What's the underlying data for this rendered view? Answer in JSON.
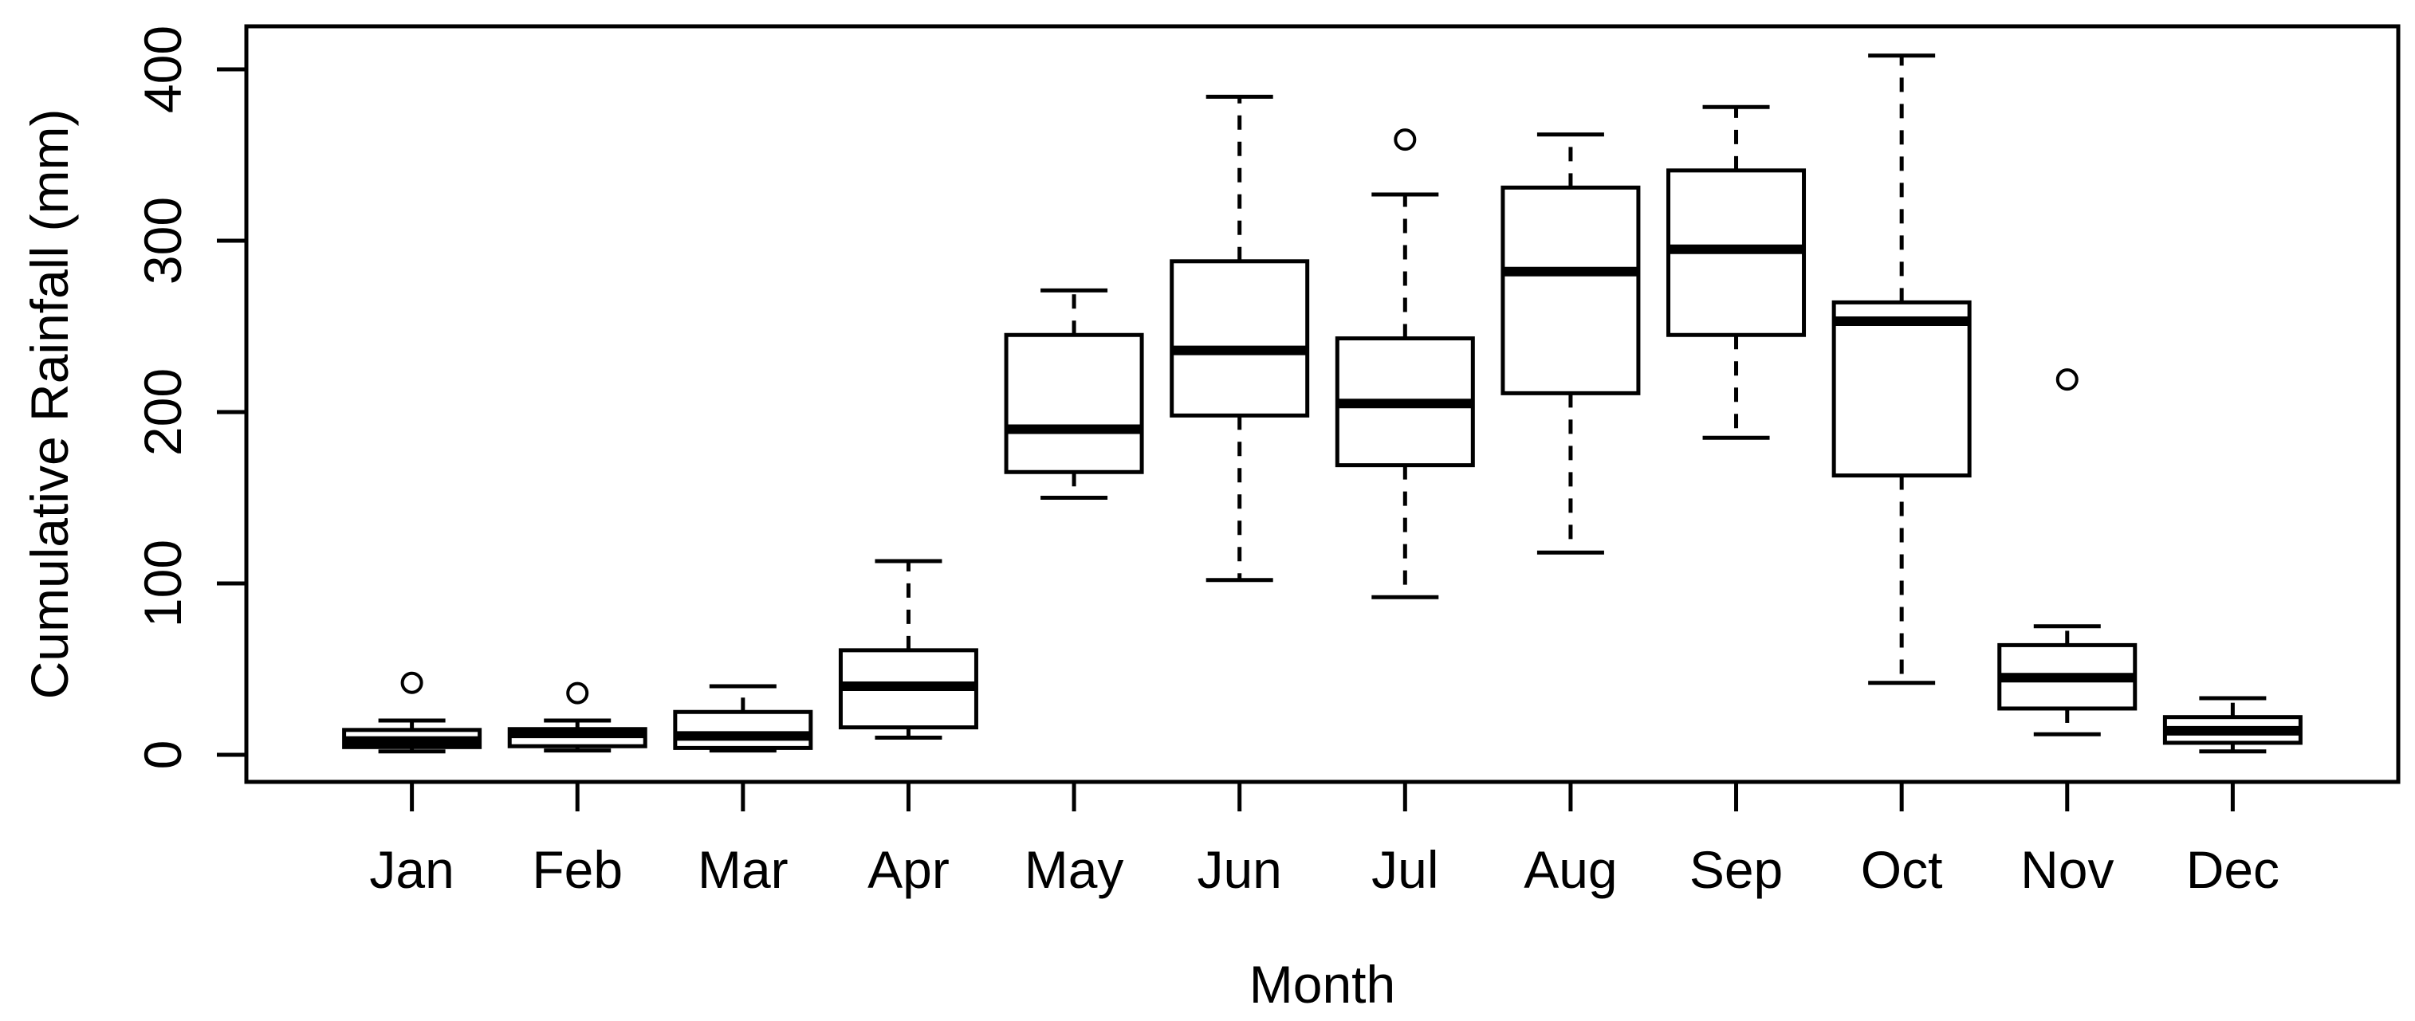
{
  "figure": {
    "background": "#ffffff",
    "description": "R-style box-and-whisker plot of monthly cumulative rainfall"
  },
  "chart_data": {
    "type": "boxplot",
    "title": "",
    "xlabel": "Month",
    "ylabel": "Cumulative Rainfall (mm)",
    "categories": [
      "Jan",
      "Feb",
      "Mar",
      "Apr",
      "May",
      "Jun",
      "Jul",
      "Aug",
      "Sep",
      "Oct",
      "Nov",
      "Dec"
    ],
    "yticks": [
      0,
      100,
      200,
      300,
      400
    ],
    "ylim": [
      -16,
      425
    ],
    "grid": false,
    "legend": "none",
    "colors": {
      "stroke": "#000000",
      "box_fill": "#ffffff",
      "background": "#ffffff"
    },
    "boxes": [
      {
        "month": "Jan",
        "whisker_low": 2,
        "q1": 4.5,
        "median": 8,
        "q3": 14.5,
        "whisker_high": 20,
        "outliers": [
          42
        ]
      },
      {
        "month": "Feb",
        "whisker_low": 2.5,
        "q1": 5,
        "median": 12.5,
        "q3": 15,
        "whisker_high": 20,
        "outliers": [
          36
        ]
      },
      {
        "month": "Mar",
        "whisker_low": 2.5,
        "q1": 4,
        "median": 11,
        "q3": 25,
        "whisker_high": 40,
        "outliers": []
      },
      {
        "month": "Apr",
        "whisker_low": 10,
        "q1": 16,
        "median": 40,
        "q3": 61,
        "whisker_high": 113,
        "outliers": []
      },
      {
        "month": "May",
        "whisker_low": 150,
        "q1": 165,
        "median": 190,
        "q3": 245,
        "whisker_high": 271,
        "outliers": []
      },
      {
        "month": "Jun",
        "whisker_low": 102,
        "q1": 198,
        "median": 236,
        "q3": 288,
        "whisker_high": 384,
        "outliers": []
      },
      {
        "month": "Jul",
        "whisker_low": 92,
        "q1": 169,
        "median": 205,
        "q3": 243,
        "whisker_high": 327,
        "outliers": [
          359
        ]
      },
      {
        "month": "Aug",
        "whisker_low": 118,
        "q1": 211,
        "median": 282,
        "q3": 331,
        "whisker_high": 362,
        "outliers": []
      },
      {
        "month": "Sep",
        "whisker_low": 185,
        "q1": 245,
        "median": 295,
        "q3": 341,
        "whisker_high": 378,
        "outliers": []
      },
      {
        "month": "Oct",
        "whisker_low": 42,
        "q1": 163,
        "median": 253,
        "q3": 264,
        "whisker_high": 408,
        "outliers": []
      },
      {
        "month": "Nov",
        "whisker_low": 12,
        "q1": 27,
        "median": 45,
        "q3": 64,
        "whisker_high": 75,
        "outliers": [
          219
        ]
      },
      {
        "month": "Dec",
        "whisker_low": 2,
        "q1": 7,
        "median": 14,
        "q3": 22,
        "whisker_high": 33,
        "outliers": []
      }
    ]
  }
}
